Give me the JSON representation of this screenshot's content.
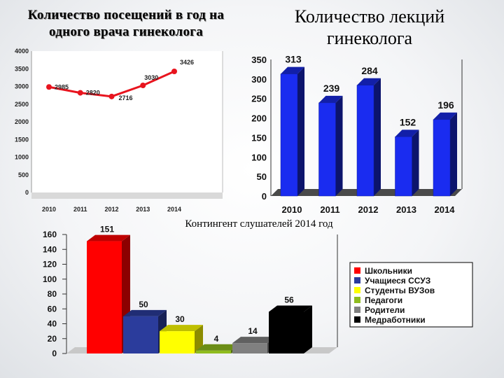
{
  "titles": {
    "visits": "Количество посещений в год на одного врача гинеколога",
    "lectures": "Количество лекций гинеколога",
    "audience": "Контингент слушателей 2014 год"
  },
  "chart_data": [
    {
      "type": "line",
      "title": "Количество посещений в год на одного врача гинеколога",
      "x": [
        "2010",
        "2011",
        "2012",
        "2013",
        "2014"
      ],
      "values": [
        2985,
        2820,
        2716,
        3030,
        3426
      ],
      "ylim": [
        0,
        4000
      ],
      "yticks": [
        0,
        500,
        1000,
        1500,
        2000,
        2500,
        3000,
        3500,
        4000
      ],
      "grid": false,
      "color": "#e8141e"
    },
    {
      "type": "bar",
      "title": "Количество лекций гинеколога",
      "categories": [
        "2010",
        "2011",
        "2012",
        "2013",
        "2014"
      ],
      "values": [
        313,
        239,
        284,
        152,
        196
      ],
      "ylim": [
        0,
        350
      ],
      "yticks": [
        0,
        50,
        100,
        150,
        200,
        250,
        300,
        350
      ],
      "color": "#1a2cf0"
    },
    {
      "type": "bar",
      "title": "Контингент слушателей 2014 год",
      "categories": [
        "Школьники",
        "Учащиеся ССУЗ",
        "Студенты ВУЗов",
        "Педагоги",
        "Родители",
        "Медработники"
      ],
      "values": [
        151,
        50,
        30,
        4,
        14,
        56
      ],
      "ylim": [
        0,
        160
      ],
      "yticks": [
        0,
        20,
        40,
        60,
        80,
        100,
        120,
        140,
        160
      ],
      "legend_position": "right",
      "colors": [
        "#ff0000",
        "#2b3c9c",
        "#ffff00",
        "#8fbc1e",
        "#808080",
        "#000000"
      ]
    }
  ]
}
